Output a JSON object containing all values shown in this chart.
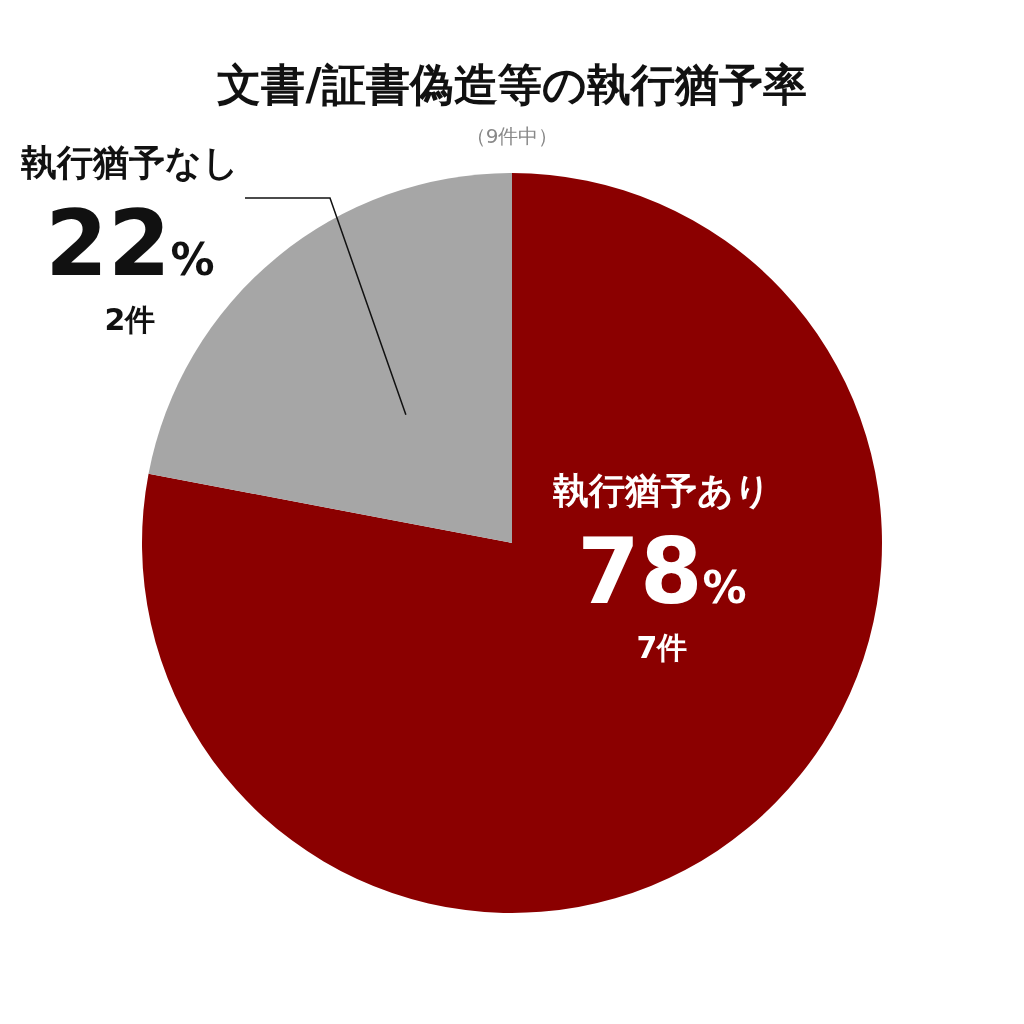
{
  "chart_data": {
    "type": "pie",
    "title": "文書/証書偽造等の執行猶予率",
    "subtitle": "（9件中）",
    "categories": [
      "執行猶予あり",
      "執行猶予なし"
    ],
    "values": [
      78,
      22
    ],
    "value_labels": [
      "78%",
      "22%"
    ],
    "annotations": [
      "7件",
      "2件"
    ],
    "colors": [
      "#8b0000",
      "#a6a6a6"
    ]
  }
}
